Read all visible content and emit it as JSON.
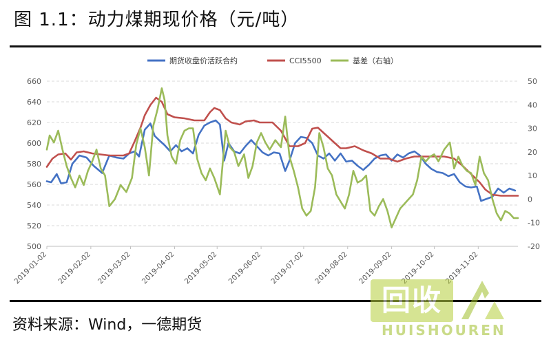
{
  "page": {
    "title": "图 1.1：动力煤期现价格（元/吨）",
    "source": "资料来源：Wind，一德期货",
    "watermark_cn": "回收",
    "watermark_en": "HUISHOUREN"
  },
  "colors": {
    "futures": "#4472C4",
    "spot": "#C0504D",
    "basis": "#9BBB59",
    "grid": "#d9d9d9",
    "axis_text": "#595959"
  },
  "chart_data": {
    "type": "line",
    "title": "",
    "xlabel": "",
    "ylabel": "",
    "x_ticks": [
      "2019-01-02",
      "2019-02-02",
      "2019-03-02",
      "2019-04-02",
      "2019-05-02",
      "2019-06-02",
      "2019-07-02",
      "2019-08-02",
      "2019-09-02",
      "2019-10-02",
      "2019-11-02"
    ],
    "x_range": [
      "2019-01-02",
      "2019-11-30"
    ],
    "ylim_left": [
      500,
      660
    ],
    "yticks_left": [
      500,
      520,
      540,
      560,
      580,
      600,
      620,
      640,
      660
    ],
    "ylim_right": [
      -20,
      50
    ],
    "yticks_right": [
      -20,
      -10,
      0,
      10,
      20,
      30,
      40,
      50
    ],
    "grid": "dashed horizontal",
    "legend_position": "top",
    "series": [
      {
        "name": "期货收盘价活跃合约",
        "axis": "left",
        "color_key": "futures",
        "points": [
          [
            "2019-01-02",
            563
          ],
          [
            "2019-01-05",
            562
          ],
          [
            "2019-01-09",
            570
          ],
          [
            "2019-01-12",
            561
          ],
          [
            "2019-01-16",
            562
          ],
          [
            "2019-01-20",
            580
          ],
          [
            "2019-01-25",
            588
          ],
          [
            "2019-01-30",
            586
          ],
          [
            "2019-02-04",
            578
          ],
          [
            "2019-02-10",
            571
          ],
          [
            "2019-02-15",
            588
          ],
          [
            "2019-02-20",
            586
          ],
          [
            "2019-02-25",
            585
          ],
          [
            "2019-03-01",
            590
          ],
          [
            "2019-03-05",
            592
          ],
          [
            "2019-03-08",
            587
          ],
          [
            "2019-03-12",
            613
          ],
          [
            "2019-03-16",
            619
          ],
          [
            "2019-03-19",
            607
          ],
          [
            "2019-03-22",
            603
          ],
          [
            "2019-03-26",
            598
          ],
          [
            "2019-03-30",
            592
          ],
          [
            "2019-04-03",
            598
          ],
          [
            "2019-04-07",
            592
          ],
          [
            "2019-04-11",
            595
          ],
          [
            "2019-04-15",
            590
          ],
          [
            "2019-04-19",
            608
          ],
          [
            "2019-04-23",
            617
          ],
          [
            "2019-04-27",
            620
          ],
          [
            "2019-05-01",
            622
          ],
          [
            "2019-05-04",
            618
          ],
          [
            "2019-05-07",
            583
          ],
          [
            "2019-05-10",
            600
          ],
          [
            "2019-05-14",
            592
          ],
          [
            "2019-05-18",
            590
          ],
          [
            "2019-05-22",
            597
          ],
          [
            "2019-05-26",
            603
          ],
          [
            "2019-05-30",
            597
          ],
          [
            "2019-06-03",
            591
          ],
          [
            "2019-06-07",
            588
          ],
          [
            "2019-06-11",
            591
          ],
          [
            "2019-06-15",
            590
          ],
          [
            "2019-06-19",
            573
          ],
          [
            "2019-06-22",
            583
          ],
          [
            "2019-06-26",
            600
          ],
          [
            "2019-06-30",
            606
          ],
          [
            "2019-07-04",
            605
          ],
          [
            "2019-07-08",
            600
          ],
          [
            "2019-07-12",
            588
          ],
          [
            "2019-07-16",
            585
          ],
          [
            "2019-07-20",
            590
          ],
          [
            "2019-07-24",
            583
          ],
          [
            "2019-07-28",
            590
          ],
          [
            "2019-08-01",
            582
          ],
          [
            "2019-08-05",
            583
          ],
          [
            "2019-08-09",
            578
          ],
          [
            "2019-08-13",
            574
          ],
          [
            "2019-08-17",
            579
          ],
          [
            "2019-08-21",
            585
          ],
          [
            "2019-08-25",
            588
          ],
          [
            "2019-08-29",
            589
          ],
          [
            "2019-09-02",
            583
          ],
          [
            "2019-09-06",
            589
          ],
          [
            "2019-09-10",
            586
          ],
          [
            "2019-09-14",
            590
          ],
          [
            "2019-09-18",
            592
          ],
          [
            "2019-09-22",
            588
          ],
          [
            "2019-09-26",
            580
          ],
          [
            "2019-09-30",
            575
          ],
          [
            "2019-10-04",
            572
          ],
          [
            "2019-10-08",
            571
          ],
          [
            "2019-10-12",
            568
          ],
          [
            "2019-10-16",
            570
          ],
          [
            "2019-10-20",
            562
          ],
          [
            "2019-10-24",
            558
          ],
          [
            "2019-10-28",
            557
          ],
          [
            "2019-11-01",
            558
          ],
          [
            "2019-11-04",
            544
          ],
          [
            "2019-11-08",
            546
          ],
          [
            "2019-11-12",
            548
          ],
          [
            "2019-11-16",
            556
          ],
          [
            "2019-11-20",
            552
          ],
          [
            "2019-11-24",
            556
          ],
          [
            "2019-11-28",
            554
          ]
        ]
      },
      {
        "name": "CCI5500",
        "axis": "left",
        "color_key": "spot",
        "points": [
          [
            "2019-01-02",
            577
          ],
          [
            "2019-01-06",
            585
          ],
          [
            "2019-01-10",
            589
          ],
          [
            "2019-01-15",
            590
          ],
          [
            "2019-01-19",
            584
          ],
          [
            "2019-01-23",
            591
          ],
          [
            "2019-01-28",
            592
          ],
          [
            "2019-02-03",
            590
          ],
          [
            "2019-02-15",
            588
          ],
          [
            "2019-02-25",
            588
          ],
          [
            "2019-03-01",
            590
          ],
          [
            "2019-03-05",
            602
          ],
          [
            "2019-03-09",
            615
          ],
          [
            "2019-03-12",
            627
          ],
          [
            "2019-03-16",
            637
          ],
          [
            "2019-03-20",
            644
          ],
          [
            "2019-03-24",
            640
          ],
          [
            "2019-03-28",
            628
          ],
          [
            "2019-04-02",
            625
          ],
          [
            "2019-04-09",
            624
          ],
          [
            "2019-04-16",
            622
          ],
          [
            "2019-04-23",
            622
          ],
          [
            "2019-04-27",
            630
          ],
          [
            "2019-04-30",
            634
          ],
          [
            "2019-05-04",
            632
          ],
          [
            "2019-05-08",
            624
          ],
          [
            "2019-05-12",
            620
          ],
          [
            "2019-05-18",
            618
          ],
          [
            "2019-05-22",
            621
          ],
          [
            "2019-05-28",
            622
          ],
          [
            "2019-06-01",
            620
          ],
          [
            "2019-06-10",
            620
          ],
          [
            "2019-06-16",
            612
          ],
          [
            "2019-06-22",
            597
          ],
          [
            "2019-06-28",
            597
          ],
          [
            "2019-07-03",
            600
          ],
          [
            "2019-07-08",
            614
          ],
          [
            "2019-07-12",
            615
          ],
          [
            "2019-07-16",
            610
          ],
          [
            "2019-07-20",
            605
          ],
          [
            "2019-07-24",
            600
          ],
          [
            "2019-07-28",
            595
          ],
          [
            "2019-08-01",
            595
          ],
          [
            "2019-08-07",
            597
          ],
          [
            "2019-08-13",
            593
          ],
          [
            "2019-08-19",
            590
          ],
          [
            "2019-08-25",
            585
          ],
          [
            "2019-08-31",
            585
          ],
          [
            "2019-09-06",
            582
          ],
          [
            "2019-09-12",
            585
          ],
          [
            "2019-09-18",
            587
          ],
          [
            "2019-09-25",
            587
          ],
          [
            "2019-10-02",
            587
          ],
          [
            "2019-10-09",
            587
          ],
          [
            "2019-10-16",
            585
          ],
          [
            "2019-10-22",
            578
          ],
          [
            "2019-10-28",
            570
          ],
          [
            "2019-11-03",
            562
          ],
          [
            "2019-11-07",
            555
          ],
          [
            "2019-11-12",
            550
          ],
          [
            "2019-11-18",
            549
          ],
          [
            "2019-11-24",
            549
          ],
          [
            "2019-11-30",
            549
          ]
        ]
      },
      {
        "name": "基差（右轴）",
        "axis": "right",
        "color_key": "basis",
        "points": [
          [
            "2019-01-02",
            21
          ],
          [
            "2019-01-04",
            27
          ],
          [
            "2019-01-07",
            24
          ],
          [
            "2019-01-10",
            29
          ],
          [
            "2019-01-13",
            21
          ],
          [
            "2019-01-16",
            14
          ],
          [
            "2019-01-19",
            9
          ],
          [
            "2019-01-22",
            5
          ],
          [
            "2019-01-25",
            10
          ],
          [
            "2019-01-28",
            6
          ],
          [
            "2019-01-31",
            12
          ],
          [
            "2019-02-03",
            16
          ],
          [
            "2019-02-06",
            21
          ],
          [
            "2019-02-09",
            13
          ],
          [
            "2019-02-12",
            10
          ],
          [
            "2019-02-15",
            -3
          ],
          [
            "2019-02-19",
            0
          ],
          [
            "2019-02-23",
            6
          ],
          [
            "2019-02-27",
            3
          ],
          [
            "2019-03-03",
            9
          ],
          [
            "2019-03-06",
            23
          ],
          [
            "2019-03-09",
            30
          ],
          [
            "2019-03-12",
            22
          ],
          [
            "2019-03-15",
            10
          ],
          [
            "2019-03-18",
            31
          ],
          [
            "2019-03-21",
            38
          ],
          [
            "2019-03-24",
            47
          ],
          [
            "2019-03-26",
            42
          ],
          [
            "2019-03-28",
            27
          ],
          [
            "2019-03-31",
            18
          ],
          [
            "2019-04-03",
            15
          ],
          [
            "2019-04-06",
            25
          ],
          [
            "2019-04-09",
            29
          ],
          [
            "2019-04-12",
            30
          ],
          [
            "2019-04-15",
            30
          ],
          [
            "2019-04-18",
            17
          ],
          [
            "2019-04-21",
            11
          ],
          [
            "2019-04-24",
            8
          ],
          [
            "2019-04-27",
            13
          ],
          [
            "2019-04-30",
            9
          ],
          [
            "2019-05-04",
            2
          ],
          [
            "2019-05-08",
            29
          ],
          [
            "2019-05-11",
            22
          ],
          [
            "2019-05-14",
            20
          ],
          [
            "2019-05-17",
            14
          ],
          [
            "2019-05-21",
            19
          ],
          [
            "2019-05-24",
            9
          ],
          [
            "2019-05-27",
            14
          ],
          [
            "2019-05-30",
            24
          ],
          [
            "2019-06-02",
            28
          ],
          [
            "2019-06-05",
            24
          ],
          [
            "2019-06-08",
            21
          ],
          [
            "2019-06-12",
            25
          ],
          [
            "2019-06-16",
            22
          ],
          [
            "2019-06-19",
            35
          ],
          [
            "2019-06-22",
            18
          ],
          [
            "2019-06-25",
            12
          ],
          [
            "2019-06-28",
            5
          ],
          [
            "2019-07-01",
            -4
          ],
          [
            "2019-07-04",
            -7
          ],
          [
            "2019-07-07",
            -5
          ],
          [
            "2019-07-10",
            5
          ],
          [
            "2019-07-13",
            28
          ],
          [
            "2019-07-16",
            22
          ],
          [
            "2019-07-19",
            13
          ],
          [
            "2019-07-22",
            10
          ],
          [
            "2019-07-25",
            2
          ],
          [
            "2019-07-28",
            -1
          ],
          [
            "2019-07-31",
            -4
          ],
          [
            "2019-08-03",
            2
          ],
          [
            "2019-08-06",
            12
          ],
          [
            "2019-08-09",
            7
          ],
          [
            "2019-08-12",
            8
          ],
          [
            "2019-08-15",
            10
          ],
          [
            "2019-08-18",
            -5
          ],
          [
            "2019-08-21",
            -7
          ],
          [
            "2019-08-24",
            -3
          ],
          [
            "2019-08-27",
            0
          ],
          [
            "2019-08-30",
            -5
          ],
          [
            "2019-09-02",
            -12
          ],
          [
            "2019-09-05",
            -8
          ],
          [
            "2019-09-08",
            -4
          ],
          [
            "2019-09-11",
            -2
          ],
          [
            "2019-09-14",
            0
          ],
          [
            "2019-09-17",
            2
          ],
          [
            "2019-09-20",
            8
          ],
          [
            "2019-09-23",
            18
          ],
          [
            "2019-09-26",
            16
          ],
          [
            "2019-09-29",
            18
          ],
          [
            "2019-10-02",
            19
          ],
          [
            "2019-10-05",
            16
          ],
          [
            "2019-10-09",
            21
          ],
          [
            "2019-10-13",
            24
          ],
          [
            "2019-10-16",
            13
          ],
          [
            "2019-10-19",
            18
          ],
          [
            "2019-10-22",
            14
          ],
          [
            "2019-10-25",
            12
          ],
          [
            "2019-10-28",
            11
          ],
          [
            "2019-10-31",
            6
          ],
          [
            "2019-11-03",
            18
          ],
          [
            "2019-11-06",
            11
          ],
          [
            "2019-11-09",
            8
          ],
          [
            "2019-11-12",
            0
          ],
          [
            "2019-11-15",
            -6
          ],
          [
            "2019-11-18",
            -9
          ],
          [
            "2019-11-21",
            -5
          ],
          [
            "2019-11-24",
            -6
          ],
          [
            "2019-11-27",
            -8
          ],
          [
            "2019-11-30",
            -8
          ]
        ]
      }
    ]
  }
}
